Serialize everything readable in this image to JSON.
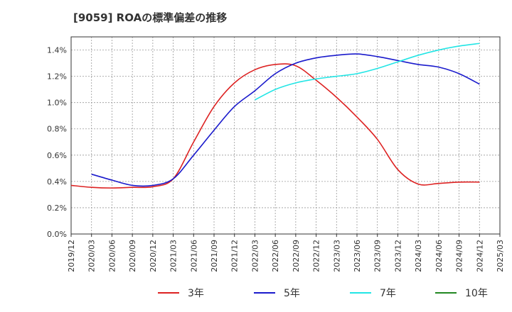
{
  "chart_data": {
    "type": "line",
    "title": "[9059]  ROAの標準偏差の推移",
    "x": [
      "2019/12",
      "2020/03",
      "2020/06",
      "2020/09",
      "2020/12",
      "2021/03",
      "2021/06",
      "2021/09",
      "2021/12",
      "2022/03",
      "2022/06",
      "2022/09",
      "2022/12",
      "2023/03",
      "2023/06",
      "2023/09",
      "2023/12",
      "2024/03",
      "2024/06",
      "2024/09",
      "2024/12",
      "2025/03"
    ],
    "y_ticks": [
      "0.0%",
      "0.2%",
      "0.4%",
      "0.6%",
      "0.8%",
      "1.0%",
      "1.2%",
      "1.4%"
    ],
    "ylim": [
      0,
      1.5
    ],
    "grid": true,
    "legend_position": "bottom",
    "series": [
      {
        "name": "3年",
        "color": "#dd2222",
        "values": [
          0.37,
          0.355,
          0.35,
          0.355,
          0.36,
          0.42,
          0.7,
          0.97,
          1.15,
          1.25,
          1.29,
          1.28,
          1.17,
          1.04,
          0.89,
          0.72,
          0.49,
          0.38,
          0.385,
          0.395,
          0.395,
          null
        ]
      },
      {
        "name": "5年",
        "color": "#1a1acc",
        "values": [
          null,
          0.455,
          0.41,
          0.37,
          0.37,
          0.42,
          0.6,
          0.79,
          0.97,
          1.09,
          1.22,
          1.3,
          1.34,
          1.36,
          1.37,
          1.35,
          1.32,
          1.29,
          1.27,
          1.22,
          1.14,
          null
        ]
      },
      {
        "name": "7年",
        "color": "#22e5e5",
        "values": [
          null,
          null,
          null,
          null,
          null,
          null,
          null,
          null,
          null,
          1.02,
          1.1,
          1.15,
          1.18,
          1.2,
          1.22,
          1.26,
          1.31,
          1.36,
          1.4,
          1.43,
          1.45,
          null
        ]
      },
      {
        "name": "10年",
        "color": "#228822",
        "values": [
          null,
          null,
          null,
          null,
          null,
          null,
          null,
          null,
          null,
          null,
          null,
          null,
          null,
          null,
          null,
          null,
          null,
          null,
          null,
          null,
          null,
          null
        ]
      }
    ]
  }
}
